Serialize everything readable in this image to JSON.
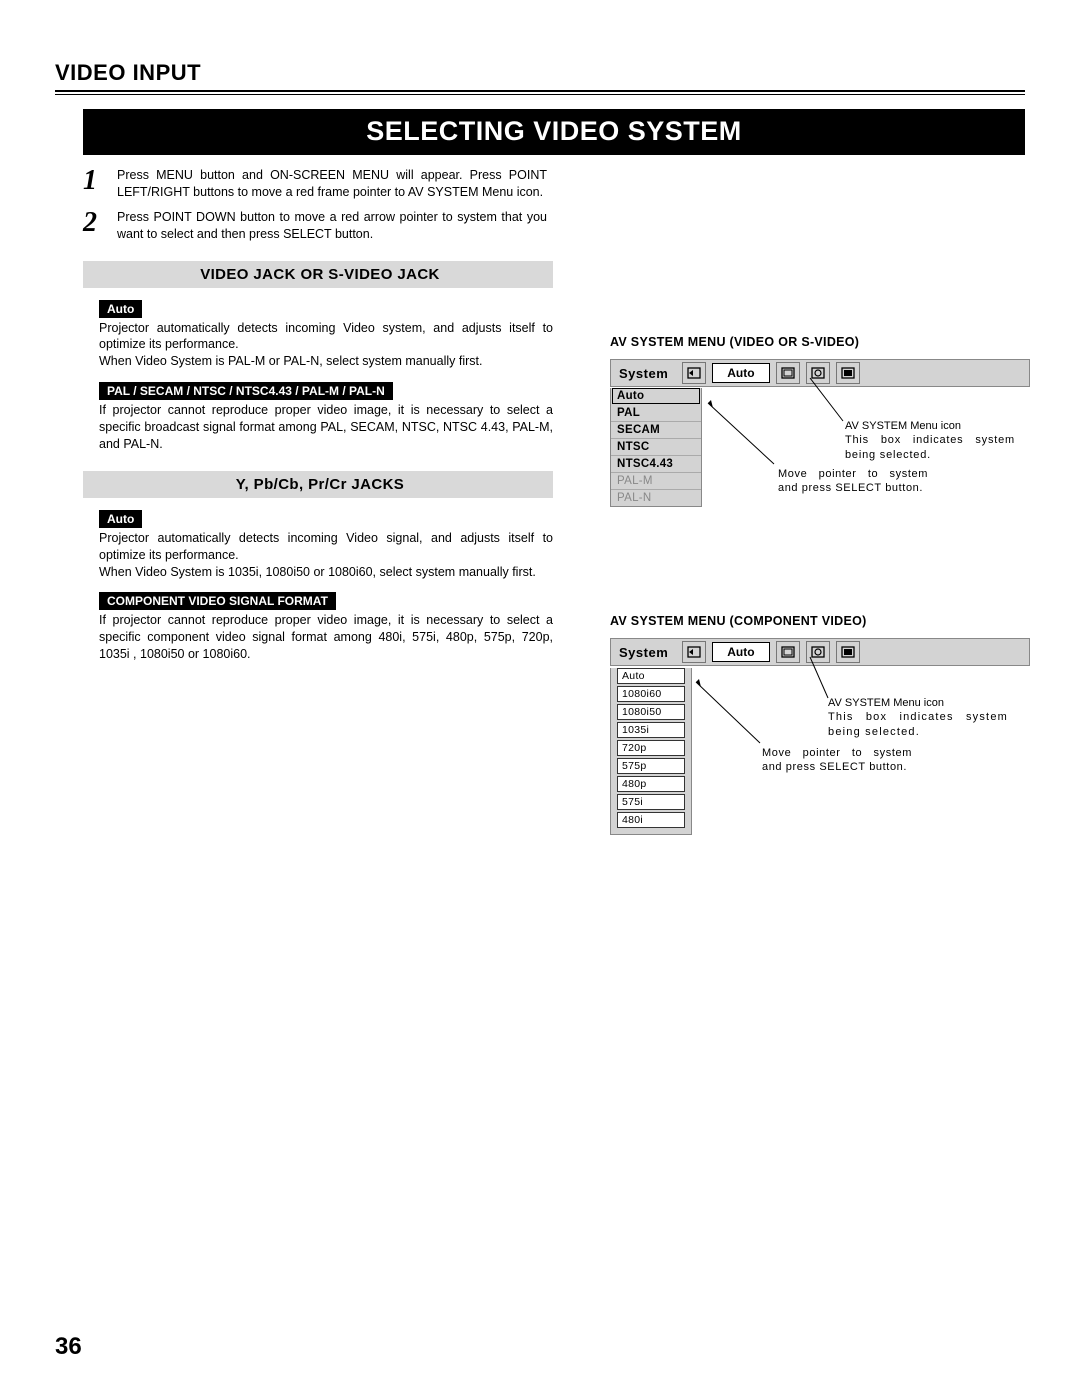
{
  "header": {
    "section": "VIDEO INPUT",
    "banner": "SELECTING VIDEO SYSTEM"
  },
  "steps": [
    {
      "num": "1",
      "text": "Press MENU button and ON-SCREEN MENU will appear.  Press POINT LEFT/RIGHT buttons to move a red frame pointer to AV SYSTEM Menu icon."
    },
    {
      "num": "2",
      "text": "Press POINT DOWN button to move a red arrow pointer to system that you want to select and then press SELECT button."
    }
  ],
  "sec1": {
    "band": "VIDEO JACK OR S-VIDEO JACK",
    "pill1": "Auto",
    "p1": "Projector automatically detects incoming Video system, and adjusts itself to optimize its performance.",
    "p1b": "When Video System is PAL-M or PAL-N, select system manually first.",
    "pill2": "PAL / SECAM / NTSC / NTSC4.43 / PAL-M / PAL-N",
    "p2": "If projector cannot reproduce proper video image, it is necessary to select a specific broadcast signal format among PAL, SECAM, NTSC, NTSC 4.43, PAL-M, and PAL-N."
  },
  "sec2": {
    "band": "Y, Pb/Cb, Pr/Cr JACKS",
    "pill1": "Auto",
    "p1": "Projector automatically detects incoming Video signal, and adjusts itself to optimize its performance.",
    "p1b": "When Video System is 1035i, 1080i50 or 1080i60, select system manually first.",
    "pill2": "COMPONENT VIDEO SIGNAL FORMAT",
    "p2": "If projector cannot reproduce proper video image, it is necessary to select a specific component video signal format among 480i, 575i, 480p, 575p, 720p, 1035i , 1080i50 or 1080i60."
  },
  "osd1": {
    "heading": "AV SYSTEM MENU (VIDEO OR S-VIDEO)",
    "system": "System",
    "auto": "Auto",
    "items": [
      "Auto",
      "PAL",
      "SECAM",
      "NTSC",
      "NTSC4.43",
      "PAL-M",
      "PAL-N"
    ],
    "annot_icon": "AV SYSTEM Menu icon",
    "annot_box": "This box indicates system being selected.",
    "annot_move": "Move pointer to system and press SELECT button."
  },
  "osd2": {
    "heading": "AV SYSTEM MENU (COMPONENT VIDEO)",
    "system": "System",
    "auto": "Auto",
    "items": [
      "Auto",
      "1080i60",
      "1080i50",
      "1035i",
      "720p",
      "575p",
      "480p",
      "575i",
      "480i"
    ],
    "annot_icon": "AV SYSTEM Menu icon",
    "annot_box": "This box indicates system being selected.",
    "annot_move": "Move pointer to system and press SELECT button."
  },
  "page": "36",
  "colors": {
    "grey": "#d3d3d3",
    "band": "#d9d9d9"
  }
}
